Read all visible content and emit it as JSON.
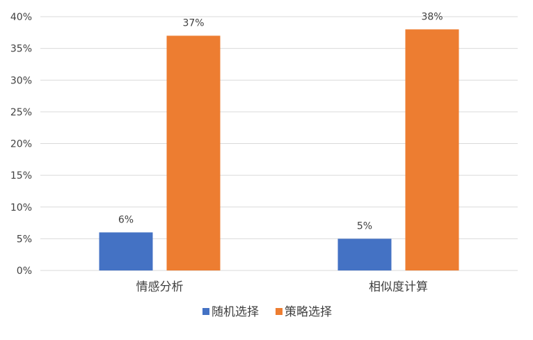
{
  "chart_data": {
    "type": "bar",
    "categories": [
      "情感分析",
      "相似度计算"
    ],
    "series": [
      {
        "name": "随机选择",
        "values": [
          6,
          5
        ],
        "labels": [
          "6%",
          "5%"
        ],
        "color": "#4472C4"
      },
      {
        "name": "策略选择",
        "values": [
          37,
          38
        ],
        "labels": [
          "37%",
          "38%"
        ],
        "color": "#ED7D31"
      }
    ],
    "ylim": [
      0,
      40
    ],
    "yticks": [
      "0%",
      "5%",
      "10%",
      "15%",
      "20%",
      "25%",
      "30%",
      "35%",
      "40%"
    ],
    "ytick_step": 5,
    "grid": true,
    "gridline_color": "#d9d9d9",
    "legend_position": "bottom"
  }
}
